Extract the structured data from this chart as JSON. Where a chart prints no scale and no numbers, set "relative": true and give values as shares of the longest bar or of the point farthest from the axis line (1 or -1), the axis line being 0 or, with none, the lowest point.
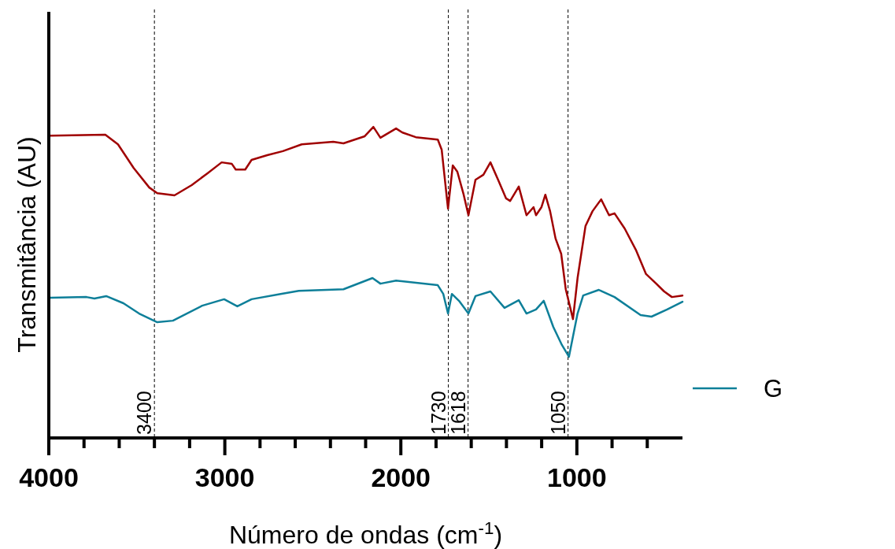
{
  "chart_data": {
    "type": "line",
    "relative": true,
    "xlabel": "Número de ondas (cm$^{-1}$)",
    "ylabel": "Transmitância (AU)",
    "xlim": [
      4000,
      400
    ],
    "xticks": [
      4000,
      {
        "value": 3800,
        "label": null
      },
      {
        "value": 3600,
        "label": null
      },
      {
        "value": 3400,
        "label": null
      },
      {
        "value": 3200,
        "label": null
      },
      3000,
      {
        "value": 2800,
        "label": null
      },
      {
        "value": 2600,
        "label": null
      },
      {
        "value": 2400,
        "label": null
      },
      {
        "value": 2200,
        "label": null
      },
      2000,
      {
        "value": 1800,
        "label": null
      },
      {
        "value": 1600,
        "label": null
      },
      {
        "value": 1400,
        "label": null
      },
      {
        "value": 1200,
        "label": null
      },
      1000,
      {
        "value": 800,
        "label": null
      },
      {
        "value": 600,
        "label": null
      }
    ],
    "legend": "right",
    "grid": false,
    "marker": "none",
    "line_style": "solid",
    "ref_lines": [
      {
        "axis": "x",
        "value": 3400,
        "label": "3400",
        "line_style": "dashed",
        "color": "#000000"
      },
      {
        "axis": "x",
        "value": 1730,
        "label": "1730",
        "line_style": "dashed",
        "color": "#000000"
      },
      {
        "axis": "x",
        "value": 1618,
        "label": "1618",
        "line_style": "dashed",
        "color": "#000000"
      },
      {
        "axis": "x",
        "value": 1050,
        "label": "1050",
        "line_style": "dashed",
        "color": "#000000"
      }
    ],
    "series": [
      {
        "color": "#a00000",
        "x": [
          3991,
          3679,
          3607,
          3518,
          3429,
          3384,
          3286,
          3188,
          3098,
          3018,
          2960,
          2938,
          2884,
          2848,
          2759,
          2670,
          2563,
          2384,
          2326,
          2205,
          2156,
          2116,
          2027,
          1991,
          1915,
          1790,
          1768,
          1732,
          1705,
          1679,
          1643,
          1616,
          1576,
          1531,
          1491,
          1446,
          1402,
          1379,
          1330,
          1286,
          1246,
          1232,
          1201,
          1179,
          1152,
          1121,
          1089,
          1063,
          1022,
          996,
          951,
          911,
          862,
          817,
          786,
          728,
          665,
          607,
          549,
          504,
          460,
          400
        ],
        "values": [
          0.972,
          0.975,
          0.944,
          0.868,
          0.805,
          0.787,
          0.78,
          0.813,
          0.851,
          0.886,
          0.881,
          0.863,
          0.863,
          0.894,
          0.909,
          0.922,
          0.944,
          0.952,
          0.947,
          0.97,
          1,
          0.965,
          0.995,
          0.982,
          0.967,
          0.959,
          0.927,
          0.737,
          0.876,
          0.856,
          0.782,
          0.716,
          0.83,
          0.846,
          0.886,
          0.828,
          0.77,
          0.762,
          0.808,
          0.716,
          0.742,
          0.716,
          0.742,
          0.782,
          0.729,
          0.641,
          0.592,
          0.478,
          0.382,
          0.514,
          0.681,
          0.729,
          0.767,
          0.716,
          0.722,
          0.673,
          0.605,
          0.527,
          0.496,
          0.471,
          0.453,
          0.458
        ]
      },
      {
        "name": "G",
        "color": "#0e7f99",
        "x": [
          3991,
          3786,
          3741,
          3674,
          3576,
          3487,
          3384,
          3295,
          3129,
          3004,
          2929,
          2848,
          2683,
          2580,
          2326,
          2161,
          2116,
          2027,
          1790,
          1759,
          1732,
          1710,
          1670,
          1616,
          1576,
          1491,
          1411,
          1330,
          1286,
          1232,
          1188,
          1134,
          1085,
          1045,
          996,
          964,
          875,
          786,
          638,
          576,
          487,
          400
        ],
        "values": [
          0.451,
          0.453,
          0.448,
          0.456,
          0.433,
          0.4,
          0.372,
          0.377,
          0.425,
          0.446,
          0.423,
          0.446,
          0.463,
          0.473,
          0.478,
          0.514,
          0.496,
          0.506,
          0.491,
          0.463,
          0.4,
          0.463,
          0.441,
          0.4,
          0.456,
          0.471,
          0.418,
          0.443,
          0.4,
          0.413,
          0.441,
          0.357,
          0.299,
          0.261,
          0.4,
          0.458,
          0.476,
          0.453,
          0.395,
          0.39,
          0.413,
          0.438
        ]
      }
    ]
  }
}
